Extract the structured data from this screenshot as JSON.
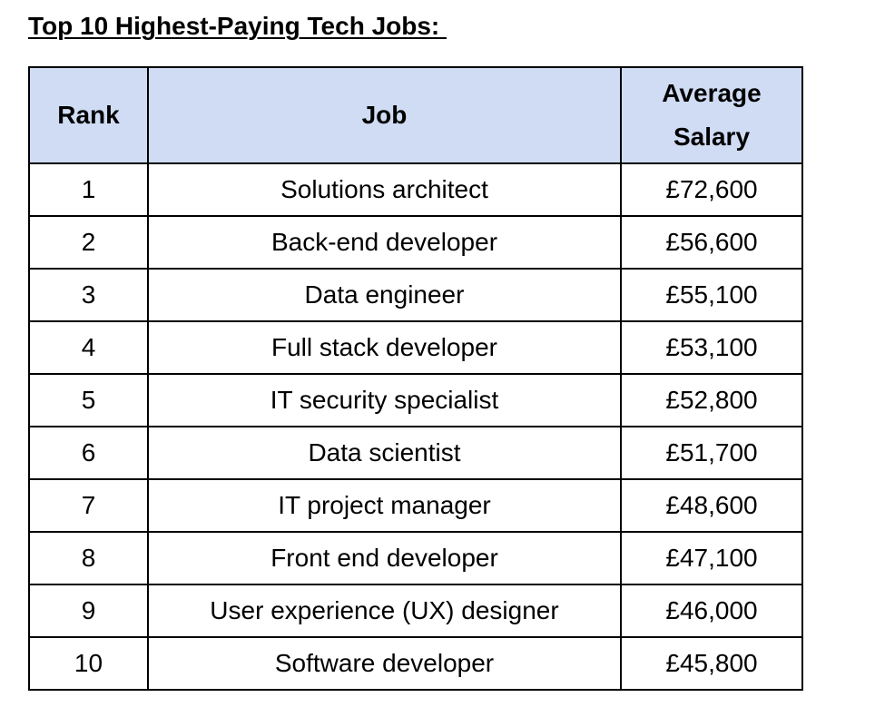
{
  "title": "Top 10 Highest-Paying Tech Jobs: ",
  "table": {
    "headers": {
      "rank": "Rank",
      "job": "Job",
      "salary_line1": "Average",
      "salary_line2": "Salary"
    },
    "rows": [
      {
        "rank": "1",
        "job": "Solutions architect",
        "salary": "£72,600"
      },
      {
        "rank": "2",
        "job": "Back-end developer",
        "salary": "£56,600"
      },
      {
        "rank": "3",
        "job": "Data engineer",
        "salary": "£55,100"
      },
      {
        "rank": "4",
        "job": "Full stack developer",
        "salary": "£53,100"
      },
      {
        "rank": "5",
        "job": "IT security specialist",
        "salary": "£52,800"
      },
      {
        "rank": "6",
        "job": "Data scientist",
        "salary": "£51,700"
      },
      {
        "rank": "7",
        "job": "IT project manager",
        "salary": "£48,600"
      },
      {
        "rank": "8",
        "job": "Front end developer",
        "salary": "£47,100"
      },
      {
        "rank": "9",
        "job": "User experience (UX) designer",
        "salary": "£46,000"
      },
      {
        "rank": "10",
        "job": "Software developer",
        "salary": "£45,800"
      }
    ]
  },
  "colors": {
    "header_background": "#cfdcf4",
    "border": "#000000"
  }
}
